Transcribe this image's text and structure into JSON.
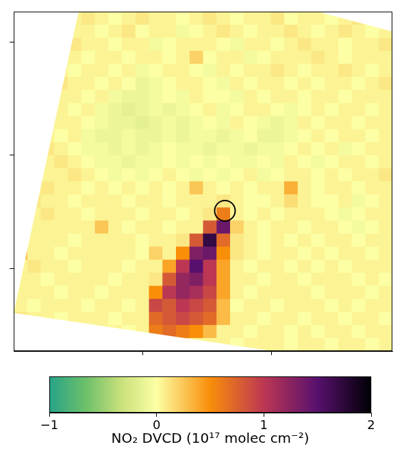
{
  "chart_data": {
    "type": "heatmap",
    "xlim": [
      0,
      2.94
    ],
    "ylim": [
      -0.73,
      2.27
    ],
    "xticks": [
      1,
      2
    ],
    "yticks": [
      0,
      1,
      2
    ],
    "tick_labels": false,
    "grid": false,
    "cells_extent": [
      0,
      2.94,
      -0.73,
      2.27
    ],
    "footprint": [
      [
        0.604,
        2.799
      ],
      [
        0,
        -0.393
      ],
      [
        3.125,
        -0.916
      ],
      [
        3.729,
        1.857
      ]
    ],
    "cells": [
      [
        null,
        null,
        null,
        null,
        0.05,
        0.1,
        0.05,
        0,
        0.05,
        0.1,
        0.05,
        0.05,
        0,
        0.05,
        0.1,
        0.05,
        0,
        0.05,
        0.05,
        0.1,
        0,
        0.05,
        0.05,
        0,
        0.05,
        0.1,
        0.05,
        null
      ],
      [
        null,
        null,
        null,
        null,
        0.05,
        0.05,
        0,
        0.05,
        0.1,
        0,
        0.05,
        0.05,
        -0.05,
        0,
        0.05,
        0.1,
        0.05,
        0,
        0.05,
        0.05,
        0.1,
        0.05,
        0,
        0.05,
        0.1,
        0.05,
        0,
        0.05
      ],
      [
        null,
        null,
        null,
        null,
        0.1,
        0.05,
        0.05,
        0,
        0.05,
        0.05,
        -0.05,
        0,
        0.05,
        0.05,
        0.05,
        0,
        -0.05,
        0.05,
        0.05,
        0,
        0.05,
        0.1,
        0.05,
        0.05,
        0,
        0.05,
        0.05,
        0.1
      ],
      [
        null,
        null,
        null,
        0.05,
        0.05,
        0,
        0.05,
        0.05,
        0,
        0.05,
        0.05,
        0,
        0.05,
        0.2,
        0,
        0.05,
        0.05,
        -0.05,
        0,
        0.05,
        0.05,
        0.05,
        0.1,
        0.05,
        0,
        0.05,
        0.05,
        0.05
      ],
      [
        null,
        null,
        null,
        0.05,
        0,
        0.05,
        0.05,
        0,
        0.05,
        -0.05,
        0,
        0.05,
        0.05,
        0,
        -0.05,
        0.05,
        0,
        0.05,
        0.05,
        0.1,
        0.05,
        0,
        0.05,
        0.05,
        0.1,
        0.05,
        0,
        0.05
      ],
      [
        null,
        null,
        null,
        0.1,
        0.05,
        0.05,
        0,
        0.05,
        0,
        -0.1,
        -0.05,
        0,
        0.05,
        0.05,
        0,
        -0.05,
        0.05,
        0,
        0.05,
        0.05,
        0,
        0.05,
        0,
        0.05,
        0.05,
        0,
        0.05,
        0.1
      ],
      [
        null,
        null,
        null,
        0.05,
        0.05,
        0,
        0.05,
        -0.05,
        -0.1,
        -0.1,
        -0.05,
        0,
        -0.05,
        0.05,
        0,
        0,
        -0.05,
        0.05,
        0,
        0.05,
        0.05,
        0,
        0.05,
        0.05,
        0,
        0.05,
        0.05,
        0.05
      ],
      [
        null,
        null,
        null,
        0.05,
        0,
        0.05,
        -0.05,
        -0.1,
        -0.15,
        -0.1,
        -0.05,
        -0.1,
        -0.05,
        0,
        0.05,
        -0.05,
        0,
        0.05,
        0.05,
        0,
        -0.05,
        0,
        0.05,
        0,
        0.05,
        0.05,
        0,
        0.05
      ],
      [
        null,
        null,
        0.05,
        0.05,
        0.05,
        0,
        -0.05,
        -0.1,
        -0.1,
        -0.15,
        -0.1,
        -0.05,
        -0.1,
        -0.05,
        0,
        -0.05,
        0.05,
        0,
        -0.05,
        -0.1,
        -0.05,
        0.05,
        0,
        0.05,
        0.05,
        0,
        0.05,
        0.05
      ],
      [
        null,
        null,
        0.05,
        0,
        0.05,
        -0.05,
        -0.1,
        -0.1,
        -0.05,
        -0.1,
        -0.1,
        -0.05,
        -0.1,
        -0.05,
        -0.05,
        -0.1,
        -0.05,
        0,
        -0.1,
        -0.1,
        -0.05,
        0,
        0.05,
        0,
        0.05,
        0.05,
        0,
        0.05
      ],
      [
        null,
        null,
        0.1,
        0.05,
        0,
        -0.05,
        -0.05,
        -0.1,
        -0.05,
        -0.1,
        -0.05,
        0,
        -0.05,
        -0.05,
        -0.1,
        -0.05,
        -0.05,
        -0.1,
        -0.05,
        -0.05,
        0,
        0.05,
        0,
        0.05,
        -0.05,
        0,
        0.05,
        0.05
      ],
      [
        null,
        null,
        0.05,
        0.1,
        0.05,
        0,
        -0.05,
        -0.05,
        -0.1,
        -0.05,
        -0.05,
        0,
        -0.05,
        0,
        -0.05,
        0,
        -0.05,
        -0.05,
        0,
        -0.05,
        0.05,
        0,
        -0.05,
        0,
        0.05,
        0.05,
        0,
        0.05
      ],
      [
        null,
        null,
        0.05,
        0.05,
        0.1,
        0.05,
        0,
        -0.05,
        0,
        -0.05,
        0,
        0.05,
        0,
        -0.05,
        0,
        -0.05,
        0,
        0.05,
        -0.05,
        0,
        0.05,
        0.05,
        0,
        0.05,
        0,
        0.05,
        0.05,
        0.1
      ],
      [
        null,
        0.05,
        0.1,
        0.05,
        0.05,
        0,
        0.05,
        0,
        0.05,
        0,
        0.05,
        0,
        0.05,
        0.25,
        0.05,
        0,
        0.05,
        0,
        0.05,
        0.05,
        0.35,
        0.05,
        0,
        0.05,
        0.05,
        0,
        0.05,
        0.05
      ],
      [
        null,
        0.1,
        0.05,
        0.05,
        0,
        0.05,
        0.05,
        0.05,
        0,
        0.05,
        0.05,
        0,
        0.05,
        0.05,
        0.05,
        0.1,
        0.05,
        0,
        0,
        0.05,
        0.15,
        0.05,
        0,
        0,
        0.05,
        -0.05,
        0,
        0.05
      ],
      [
        null,
        0.05,
        0.1,
        0.05,
        0.05,
        0,
        0.05,
        0.05,
        0.05,
        0,
        0.05,
        0.05,
        0,
        0.05,
        0.1,
        0.6,
        0.05,
        0,
        0.05,
        0,
        0.05,
        0.05,
        0.05,
        0,
        -0.05,
        0,
        0.05,
        0.05
      ],
      [
        null,
        0.05,
        0.05,
        0.05,
        0.05,
        0.05,
        0.25,
        0.05,
        0,
        0.05,
        0.05,
        0,
        0.05,
        0.05,
        0.8,
        1.4,
        0.2,
        0.05,
        0,
        0.05,
        0.05,
        0,
        0.05,
        0.05,
        0,
        -0.05,
        0,
        0.05
      ],
      [
        null,
        0.05,
        0.05,
        0.05,
        0,
        0.05,
        0.05,
        0.05,
        0.05,
        0,
        0.05,
        0.05,
        0.1,
        0.8,
        1.7,
        0.7,
        0.1,
        0.05,
        0,
        0.05,
        0,
        0.05,
        0,
        0.05,
        0.05,
        0,
        0.05,
        0.05
      ],
      [
        0.3,
        0.05,
        0.05,
        0,
        0.05,
        0.05,
        0.05,
        0.05,
        0.05,
        0,
        0.2,
        0.05,
        0.5,
        1.3,
        1.4,
        0.5,
        0.1,
        0.05,
        0,
        0.05,
        0.05,
        0,
        0.05,
        0,
        0.05,
        0.05,
        0,
        0.05
      ],
      [
        0.05,
        0.1,
        0.05,
        0.05,
        0,
        0.05,
        0.05,
        0.05,
        0,
        0.05,
        0.05,
        0.4,
        1.0,
        1.5,
        1.0,
        0.4,
        0.05,
        0,
        0.05,
        0.05,
        0,
        0.05,
        0,
        0.05,
        0,
        0.05,
        0.05,
        0.05
      ],
      [
        0.05,
        0.05,
        0,
        0.05,
        0.05,
        0.05,
        0.05,
        0,
        0.05,
        0.05,
        0.1,
        0.8,
        1.2,
        1.3,
        1.0,
        0.4,
        0.05,
        0.05,
        0,
        0.05,
        0.05,
        0,
        0.05,
        0.05,
        0.05,
        0,
        0.05,
        0
      ],
      [
        0.05,
        0.05,
        0.05,
        0,
        0.05,
        0.05,
        0,
        0.05,
        0.05,
        0.05,
        0.5,
        1.0,
        1.2,
        1.1,
        0.9,
        0.4,
        0.05,
        0,
        0.05,
        0.05,
        0.05,
        0.05,
        0,
        0.05,
        0.05,
        0.05,
        0,
        0.05
      ],
      [
        0.05,
        0,
        0.05,
        0.05,
        0.05,
        0,
        0.05,
        0.05,
        0,
        0.05,
        0.9,
        0.8,
        1.0,
        0.9,
        0.8,
        0.3,
        0,
        0.05,
        0.05,
        0,
        0.05,
        0.05,
        0.05,
        0,
        0.05,
        0,
        0.05,
        0.05
      ],
      [
        0.1,
        0.05,
        0.05,
        0,
        0.05,
        0.05,
        0.05,
        0,
        0.05,
        0.05,
        0.7,
        0.8,
        0.9,
        0.8,
        0.7,
        0.3,
        0.05,
        0.05,
        0,
        0.05,
        0.05,
        0,
        0.05,
        0.05,
        0,
        0.05,
        0.05,
        0
      ],
      [
        null,
        null,
        null,
        null,
        null,
        null,
        0.05,
        0.05,
        0,
        0.05,
        0.6,
        0.7,
        0.6,
        0.5,
        0.3,
        0.05,
        0.05,
        0,
        0.05,
        0.05,
        0,
        0.05,
        0,
        0.05,
        0.05,
        0,
        0.05,
        0.05
      ],
      [
        null,
        null,
        null,
        null,
        null,
        null,
        null,
        null,
        null,
        null,
        null,
        null,
        0.1,
        0.05,
        0.05,
        0.05,
        0,
        0.05,
        0.05,
        0.05,
        0,
        0.05,
        0.05,
        0,
        0.05,
        0.05,
        0,
        0.05
      ]
    ],
    "colorbar": {
      "label": "NO₂ DVCD (10¹⁷ molec cm⁻²)",
      "range": [
        -1,
        2
      ],
      "ticks": [
        {
          "value": -1,
          "label": "−1"
        },
        0,
        1,
        2
      ]
    },
    "series": [
      {
        "type": "scatter",
        "marker": "circle",
        "color": "#000000",
        "x": [
          1.64
        ],
        "values": [
          0.51
        ]
      }
    ]
  }
}
